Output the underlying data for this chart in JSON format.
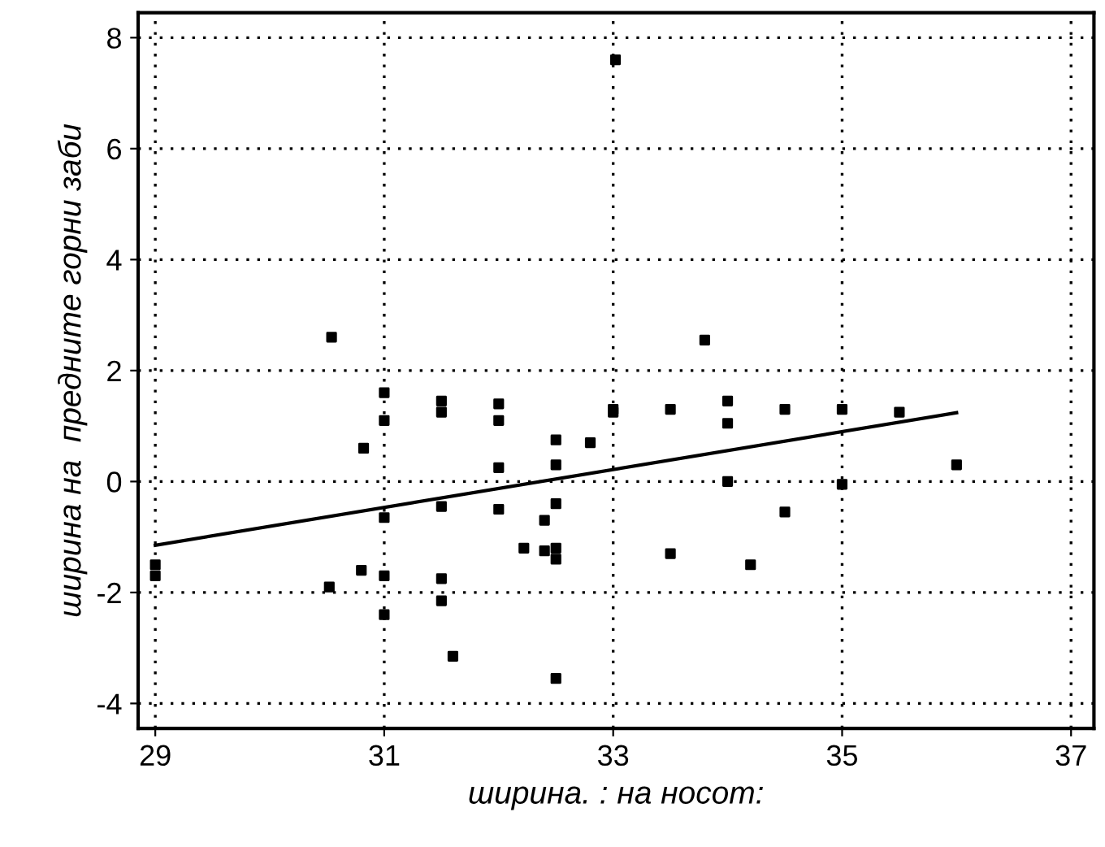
{
  "chart_data": {
    "type": "scatter",
    "xlabel": "ширина. : на носот:",
    "ylabel": "ширина на  предните горни заби",
    "xlim": [
      28.85,
      37.2
    ],
    "ylim": [
      -4.45,
      8.45
    ],
    "xticks": [
      29,
      31,
      33,
      35,
      37
    ],
    "yticks": [
      -4,
      -2,
      0,
      2,
      4,
      6,
      8
    ],
    "grid": true,
    "marker": "square",
    "series": [
      {
        "color": "#000000",
        "x": [
          29,
          29,
          30.52,
          30.54,
          30.8,
          30.82,
          31,
          31,
          31,
          31,
          31,
          31.5,
          31.5,
          31.5,
          31.5,
          31.5,
          31.6,
          32,
          32,
          32,
          32,
          32.22,
          32.4,
          32.4,
          32.5,
          32.5,
          32.5,
          32.5,
          32.5,
          32.5,
          32.8,
          33,
          33,
          33.02,
          33.5,
          33.5,
          33.8,
          34,
          34,
          34,
          34.2,
          34.5,
          34.5,
          35,
          35,
          35.5,
          36
        ],
        "values": [
          -1.5,
          -1.7,
          -1.9,
          2.6,
          -1.6,
          0.6,
          1.6,
          1.1,
          -0.65,
          -1.7,
          -2.4,
          1.45,
          1.25,
          -0.45,
          -1.75,
          -2.15,
          -3.15,
          1.4,
          1.1,
          0.25,
          -0.5,
          -1.2,
          -0.7,
          -1.25,
          0.75,
          0.3,
          -0.4,
          -1.2,
          -1.4,
          -3.55,
          0.7,
          1.25,
          1.3,
          7.6,
          1.3,
          -1.3,
          2.55,
          1.45,
          1.05,
          0,
          -1.5,
          1.3,
          -0.55,
          1.3,
          -0.05,
          1.25,
          0.3
        ]
      },
      {
        "type": "line",
        "color": "#000000",
        "x": [
          29,
          36
        ],
        "values": [
          -1.15,
          1.24
        ],
        "marker": "none"
      }
    ]
  }
}
